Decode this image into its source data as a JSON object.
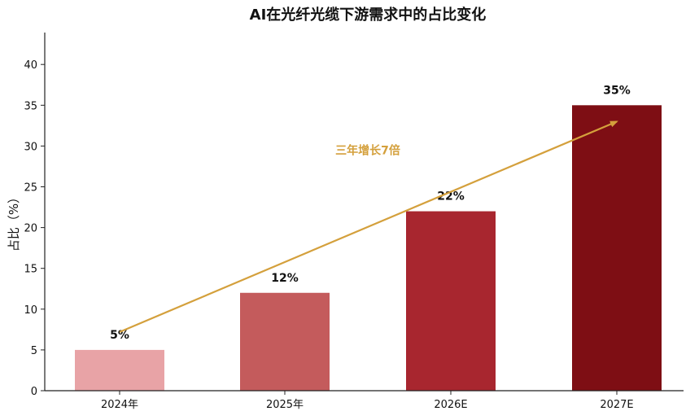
{
  "chart_data": {
    "type": "bar",
    "title": "AI在光纤光缆下游需求中的占比变化",
    "xlabel": "",
    "ylabel": "占比（%）",
    "categories": [
      "2024年",
      "2025年",
      "2026E",
      "2027E"
    ],
    "values": [
      5,
      12,
      22,
      35
    ],
    "data_labels": [
      "5%",
      "12%",
      "22%",
      "35%"
    ],
    "bar_colors": [
      "#E8A3A6",
      "#C45B5C",
      "#A8262F",
      "#7E0E14"
    ],
    "ylim": [
      0,
      44
    ],
    "yticks": [
      0,
      5,
      10,
      15,
      20,
      25,
      30,
      35,
      40
    ],
    "grid": false,
    "legend": "none",
    "annotation": {
      "text": "三年增长7倍",
      "color": "#D4A03C",
      "from": {
        "category": "2024年",
        "value": 7.2
      },
      "to": {
        "category": "2027E",
        "value": 33
      },
      "text_anchor": {
        "category_index": 1.5,
        "value": 29.5
      }
    }
  }
}
